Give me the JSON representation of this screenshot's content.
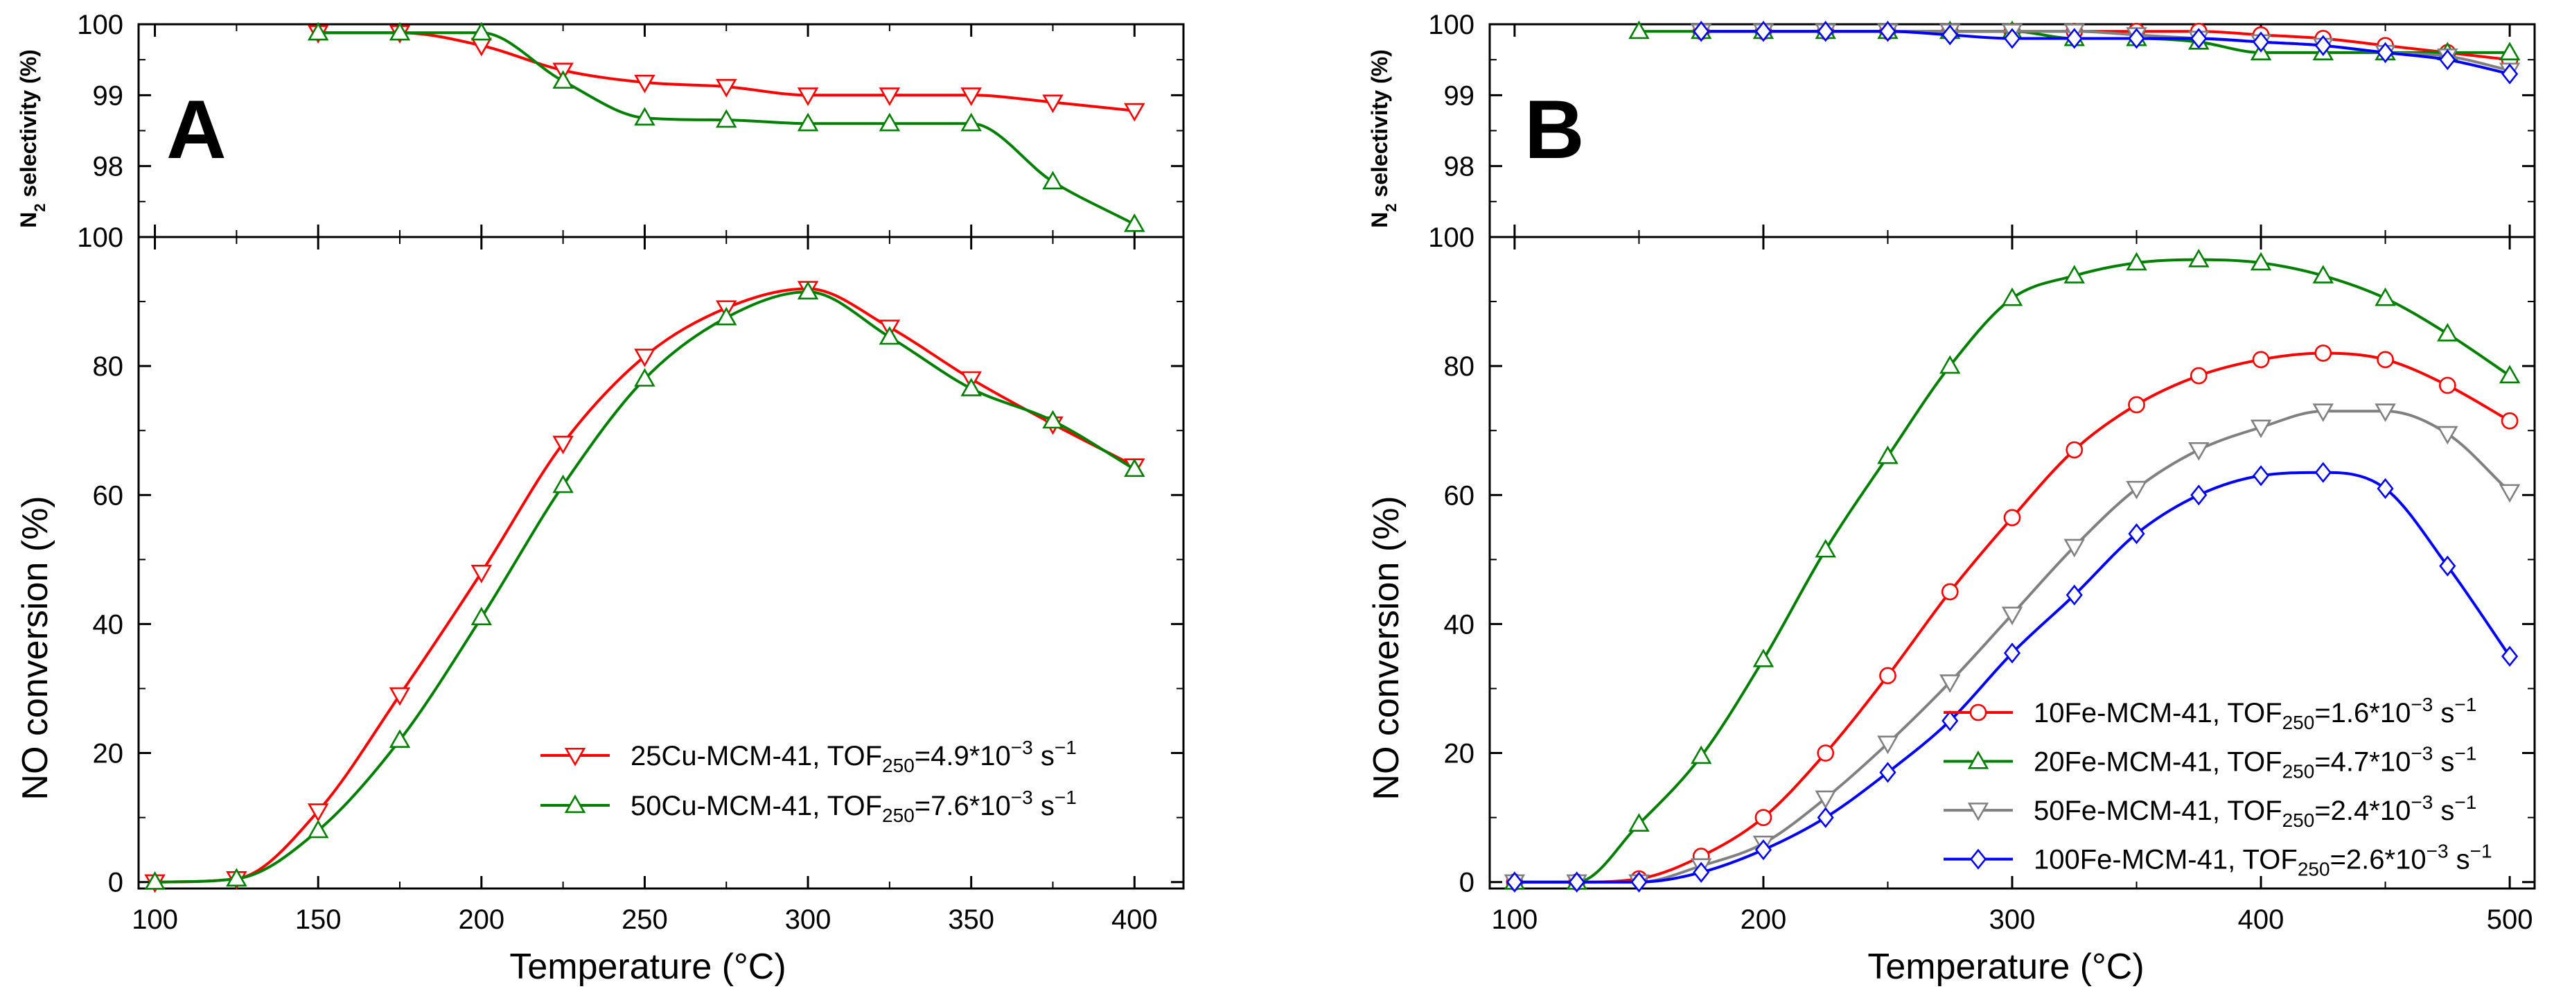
{
  "figure": {
    "panels": [
      {
        "letter": "A",
        "xlabel": "Temperature (°C)",
        "ylabel_bottom": "NO conversion (%)",
        "ylabel_top_main": "N",
        "ylabel_top_sub": "2",
        "ylabel_top_rest": " selectivity (%)"
      },
      {
        "letter": "B",
        "xlabel": "Temperature (°C)",
        "ylabel_bottom": "NO conversion (%)",
        "ylabel_top_main": "N",
        "ylabel_top_sub": "2",
        "ylabel_top_rest": " selectivity (%)"
      }
    ],
    "colors": {
      "red": "#ff0000",
      "green": "#008000",
      "gray": "#808080",
      "blue": "#0000ff"
    }
  },
  "chart_data": [
    {
      "type": "line",
      "panel": "A",
      "title": "",
      "xlabel": "Temperature (°C)",
      "ylabel": "N2 selectivity (%)",
      "xlim": [
        95,
        415
      ],
      "ylim": [
        97,
        100
      ],
      "xticks": [
        100,
        150,
        200,
        250,
        300,
        350,
        400
      ],
      "yticks": [
        98,
        99,
        100
      ],
      "series": [
        {
          "name": "25Cu-MCM-41",
          "marker": "triangle-down",
          "color": "#ff0000",
          "x": [
            150,
            175,
            200,
            225,
            250,
            275,
            300,
            325,
            350,
            375,
            400
          ],
          "y": [
            99.88,
            99.88,
            99.7,
            99.35,
            99.18,
            99.12,
            99.0,
            99.0,
            99.0,
            98.9,
            98.78
          ]
        },
        {
          "name": "50Cu-MCM-41",
          "marker": "triangle-up",
          "color": "#008000",
          "x": [
            150,
            175,
            200,
            225,
            250,
            275,
            300,
            325,
            350,
            375,
            400
          ],
          "y": [
            99.88,
            99.88,
            99.88,
            99.2,
            98.68,
            98.65,
            98.6,
            98.6,
            98.6,
            97.78,
            97.18
          ]
        }
      ]
    },
    {
      "type": "line",
      "panel": "A",
      "title": "",
      "xlabel": "Temperature (°C)",
      "ylabel": "NO conversion (%)",
      "xlim": [
        95,
        415
      ],
      "ylim": [
        -1,
        100
      ],
      "xticks": [
        100,
        150,
        200,
        250,
        300,
        350,
        400
      ],
      "yticks": [
        0,
        20,
        40,
        60,
        80,
        100
      ],
      "legend_position": "bottom-right",
      "series": [
        {
          "name": "25Cu-MCM-41",
          "label_prefix": "25Cu-MCM-41, TOF",
          "label_sub": "250",
          "label_mid": "=4.9*10",
          "label_sup": "−3",
          "label_unit": " s",
          "label_unit_sup": "−1",
          "marker": "triangle-down",
          "color": "#ff0000",
          "x": [
            100,
            125,
            150,
            175,
            200,
            225,
            250,
            275,
            300,
            325,
            350,
            375,
            400
          ],
          "y": [
            0,
            0.5,
            11,
            29,
            48,
            68,
            81.5,
            89,
            92,
            86,
            78,
            71,
            64.5
          ]
        },
        {
          "name": "50Cu-MCM-41",
          "label_prefix": "50Cu-MCM-41, TOF",
          "label_sub": "250",
          "label_mid": "=7.6*10",
          "label_sup": "−3",
          "label_unit": " s",
          "label_unit_sup": "−1",
          "marker": "triangle-up",
          "color": "#008000",
          "x": [
            100,
            125,
            150,
            175,
            200,
            225,
            250,
            275,
            300,
            325,
            350,
            375,
            400
          ],
          "y": [
            0,
            0.5,
            8,
            22,
            41,
            61.5,
            78,
            87.5,
            91.5,
            84.5,
            76.5,
            71.5,
            64
          ]
        }
      ]
    },
    {
      "type": "line",
      "panel": "B",
      "title": "",
      "xlabel": "Temperature (°C)",
      "ylabel": "N2 selectivity (%)",
      "xlim": [
        90,
        510
      ],
      "ylim": [
        97,
        100
      ],
      "xticks": [
        100,
        200,
        300,
        400,
        500
      ],
      "yticks": [
        98,
        99,
        100
      ],
      "series": [
        {
          "name": "10Fe-MCM-41",
          "marker": "circle",
          "color": "#ff0000",
          "x": [
            175,
            200,
            225,
            250,
            275,
            300,
            325,
            350,
            375,
            400,
            425,
            450,
            475,
            500
          ],
          "y": [
            99.9,
            99.9,
            99.9,
            99.9,
            99.9,
            99.9,
            99.9,
            99.9,
            99.9,
            99.85,
            99.8,
            99.7,
            99.6,
            99.5
          ]
        },
        {
          "name": "20Fe-MCM-41",
          "marker": "triangle-up",
          "color": "#008000",
          "x": [
            150,
            175,
            200,
            225,
            250,
            275,
            300,
            325,
            350,
            375,
            400,
            425,
            450,
            475,
            500
          ],
          "y": [
            99.9,
            99.9,
            99.9,
            99.9,
            99.9,
            99.9,
            99.9,
            99.8,
            99.8,
            99.75,
            99.6,
            99.6,
            99.6,
            99.6,
            99.6
          ]
        },
        {
          "name": "50Fe-MCM-41",
          "marker": "triangle-down",
          "color": "#808080",
          "x": [
            175,
            200,
            225,
            250,
            275,
            300,
            325,
            350,
            375,
            400,
            425,
            450,
            475,
            500
          ],
          "y": [
            99.9,
            99.9,
            99.9,
            99.9,
            99.9,
            99.9,
            99.9,
            99.85,
            99.8,
            99.75,
            99.7,
            99.6,
            99.55,
            99.35
          ]
        },
        {
          "name": "100Fe-MCM-41",
          "marker": "diamond",
          "color": "#0000ff",
          "x": [
            175,
            200,
            225,
            250,
            275,
            300,
            325,
            350,
            375,
            400,
            425,
            450,
            475,
            500
          ],
          "y": [
            99.9,
            99.9,
            99.9,
            99.9,
            99.85,
            99.8,
            99.8,
            99.8,
            99.8,
            99.75,
            99.7,
            99.6,
            99.5,
            99.3
          ]
        }
      ]
    },
    {
      "type": "line",
      "panel": "B",
      "title": "",
      "xlabel": "Temperature (°C)",
      "ylabel": "NO conversion (%)",
      "xlim": [
        90,
        510
      ],
      "ylim": [
        -1,
        100
      ],
      "xticks": [
        100,
        200,
        300,
        400,
        500
      ],
      "yticks": [
        0,
        20,
        40,
        60,
        80,
        100
      ],
      "legend_position": "bottom-right",
      "series": [
        {
          "name": "10Fe-MCM-41",
          "label_prefix": "10Fe-MCM-41, TOF",
          "label_sub": "250",
          "label_mid": "=1.6*10",
          "label_sup": "−3",
          "label_unit": " s",
          "label_unit_sup": "−1",
          "marker": "circle",
          "color": "#ff0000",
          "x": [
            100,
            125,
            150,
            175,
            200,
            225,
            250,
            275,
            300,
            325,
            350,
            375,
            400,
            425,
            450,
            475,
            500
          ],
          "y": [
            0,
            0,
            0.5,
            4,
            10,
            20,
            32,
            45,
            56.5,
            67,
            74,
            78.5,
            81,
            82,
            81,
            77,
            71.5
          ]
        },
        {
          "name": "20Fe-MCM-41",
          "label_prefix": "20Fe-MCM-41, TOF",
          "label_sub": "250",
          "label_mid": "=4.7*10",
          "label_sup": "−3",
          "label_unit": " s",
          "label_unit_sup": "−1",
          "marker": "triangle-up",
          "color": "#008000",
          "x": [
            100,
            125,
            150,
            175,
            200,
            225,
            250,
            275,
            300,
            325,
            350,
            375,
            400,
            425,
            450,
            475,
            500
          ],
          "y": [
            0,
            0,
            9,
            19.5,
            34.5,
            51.5,
            66,
            80,
            90.5,
            94,
            96,
            96.5,
            96,
            94,
            90.5,
            85,
            78.5
          ]
        },
        {
          "name": "50Fe-MCM-41",
          "label_prefix": "50Fe-MCM-41, TOF",
          "label_sub": "250",
          "label_mid": "=2.4*10",
          "label_sup": "−3",
          "label_unit": " s",
          "label_unit_sup": "−1",
          "marker": "triangle-down",
          "color": "#808080",
          "x": [
            100,
            125,
            150,
            175,
            200,
            225,
            250,
            275,
            300,
            325,
            350,
            375,
            400,
            425,
            450,
            475,
            500
          ],
          "y": [
            0,
            0,
            0,
            2.5,
            6,
            13,
            21.5,
            31,
            41.5,
            52,
            61,
            67,
            70.5,
            73,
            73,
            69.5,
            60.5
          ]
        },
        {
          "name": "100Fe-MCM-41",
          "label_prefix": "100Fe-MCM-41, TOF",
          "label_sub": "250",
          "label_mid": "=2.6*10",
          "label_sup": "−3",
          "label_unit": " s",
          "label_unit_sup": "−1",
          "marker": "diamond",
          "color": "#0000ff",
          "x": [
            100,
            125,
            150,
            175,
            200,
            225,
            250,
            275,
            300,
            325,
            350,
            375,
            400,
            425,
            450,
            475,
            500
          ],
          "y": [
            0,
            0,
            0,
            1.5,
            5,
            10,
            17,
            25,
            35.5,
            44.5,
            54,
            60,
            63,
            63.5,
            61,
            49,
            35
          ]
        }
      ]
    }
  ]
}
